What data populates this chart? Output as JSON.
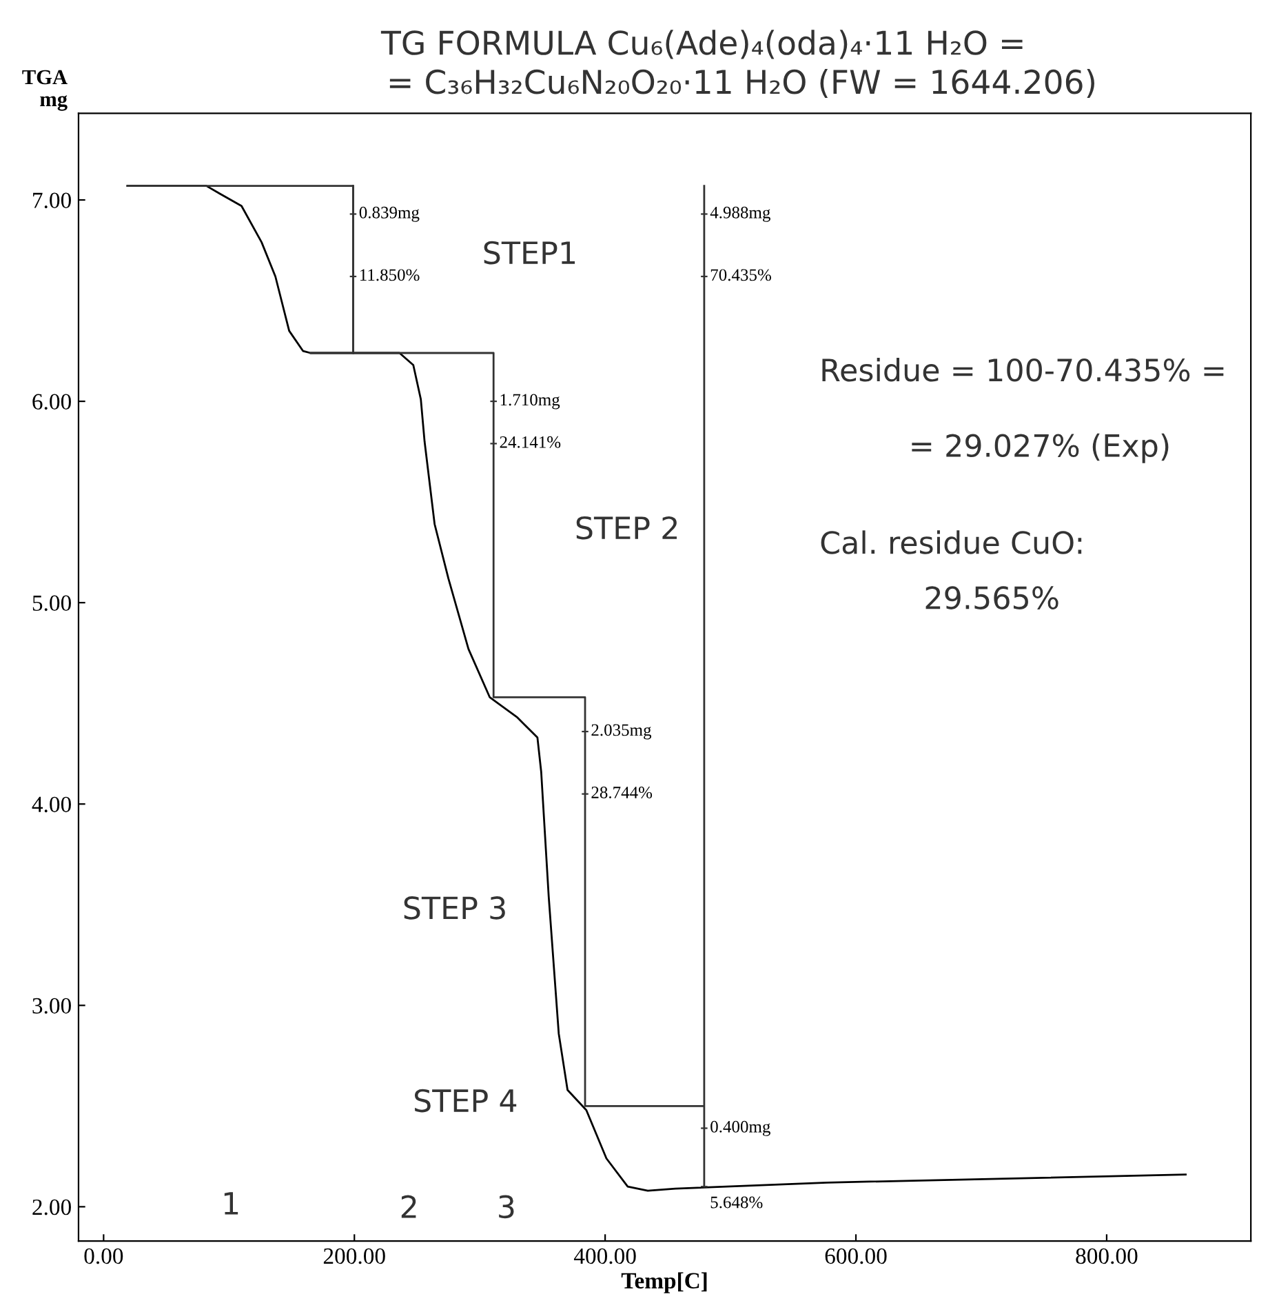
{
  "chart_data": {
    "type": "line",
    "title": "TG FORMULA Cu₆(Ade)₄(oda)₄·11 H₂O =",
    "subtitle": "= C₃₆H₃₂Cu₆N₂₀O₂₀·11 H₂O (FW = 1644.206)",
    "xlabel": "Temp[C]",
    "ylabel": "TGA\nmg",
    "xlim": [
      -20,
      915
    ],
    "ylim": [
      1.83,
      7.43
    ],
    "xticks": [
      {
        "value": 0,
        "label": "0.00"
      },
      {
        "value": 200,
        "label": "200.00"
      },
      {
        "value": 400,
        "label": "400.00"
      },
      {
        "value": 600,
        "label": "600.00"
      },
      {
        "value": 800,
        "label": "800.00"
      }
    ],
    "yticks": [
      {
        "value": 2,
        "label": "2.00"
      },
      {
        "value": 3,
        "label": "3.00"
      },
      {
        "value": 4,
        "label": "4.00"
      },
      {
        "value": 5,
        "label": "5.00"
      },
      {
        "value": 6,
        "label": "6.00"
      },
      {
        "value": 7,
        "label": "7.00"
      }
    ],
    "grid": false,
    "marker": "none",
    "line_style": "solid",
    "series": [
      {
        "color": "#000000",
        "x": [
          19,
          82,
          93,
          110,
          126,
          137,
          148,
          159,
          165,
          236,
          247,
          253,
          256,
          264,
          275,
          291,
          308,
          330,
          346,
          349,
          355,
          363,
          370,
          385,
          401,
          418,
          434,
          456,
          577,
          863
        ],
        "values": [
          7.07,
          7.07,
          7.03,
          6.97,
          6.79,
          6.62,
          6.35,
          6.25,
          6.24,
          6.24,
          6.18,
          6.01,
          5.8,
          5.39,
          5.12,
          4.77,
          4.53,
          4.43,
          4.33,
          4.16,
          3.54,
          2.86,
          2.58,
          2.48,
          2.24,
          2.1,
          2.08,
          2.09,
          2.12,
          2.16
        ]
      },
      {
        "color": "#333333",
        "x": [
          19,
          199,
          199,
          311,
          311,
          384,
          384,
          479,
          479,
          479
        ],
        "values": [
          7.07,
          7.07,
          6.24,
          6.24,
          4.53,
          4.53,
          2.5,
          2.5,
          2.1,
          7.07
        ]
      },
      {
        "color": "#333333",
        "x": [
          199,
          199
        ],
        "values": [
          7.07,
          6.24
        ]
      },
      {
        "color": "#333333",
        "x": [
          165,
          199
        ],
        "values": [
          6.24,
          6.24
        ]
      }
    ],
    "annotations": [
      {
        "text": "0.839mg",
        "x": 199,
        "y": 6.93
      },
      {
        "text": "11.850%",
        "x": 199,
        "y": 6.62
      },
      {
        "text": "1.710mg",
        "x": 311,
        "y": 6.0
      },
      {
        "text": "24.141%",
        "x": 311,
        "y": 5.79
      },
      {
        "text": "2.035mg",
        "x": 384,
        "y": 4.36
      },
      {
        "text": "28.744%",
        "x": 384,
        "y": 4.05
      },
      {
        "text": "4.988mg",
        "x": 479,
        "y": 6.93
      },
      {
        "text": "70.435%",
        "x": 479,
        "y": 6.62
      },
      {
        "text": "0.400mg",
        "x": 479,
        "y": 2.39
      },
      {
        "text": "5.648%",
        "x": 479,
        "y": 2.1
      },
      "STEP1",
      "STEP 2",
      "STEP 3",
      "STEP 4",
      "1",
      "2",
      "3",
      "Residue = 100-70.435% =",
      "= 29.027% (Exp)",
      "Cal. residue CuO:",
      "29.565%"
    ]
  }
}
